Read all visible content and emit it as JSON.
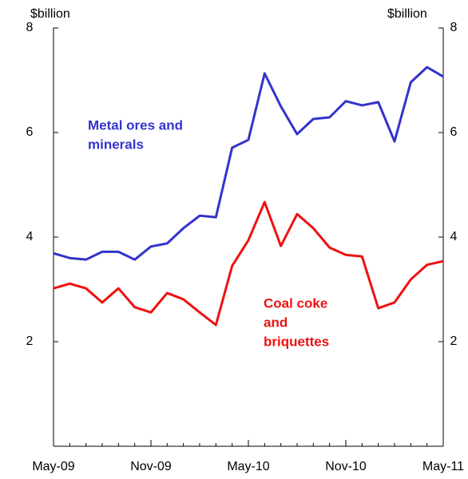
{
  "chart_data": {
    "type": "line",
    "y_unit": "$billion",
    "y2_unit": "$billion",
    "categories": [
      "May-09",
      null,
      null,
      null,
      null,
      null,
      "Nov-09",
      null,
      null,
      null,
      null,
      null,
      "May-10",
      null,
      null,
      null,
      null,
      null,
      "Nov-10",
      null,
      null,
      null,
      null,
      null,
      "May-11"
    ],
    "series": [
      {
        "name": "Metal ores and minerals",
        "color": "#3333cc",
        "label_lines": [
          "Metal ores and",
          "minerals"
        ],
        "values": [
          3.69,
          3.6,
          3.57,
          3.72,
          3.72,
          3.57,
          3.82,
          3.88,
          4.17,
          4.41,
          4.38,
          5.71,
          5.86,
          7.13,
          6.5,
          5.97,
          6.26,
          6.29,
          6.6,
          6.52,
          6.58,
          5.83,
          6.96,
          7.25,
          7.07
        ]
      },
      {
        "name": "Coal coke and briquettes",
        "color": "#ee1111",
        "label_lines": [
          "Coal coke",
          "and",
          "briquettes"
        ],
        "values": [
          3.02,
          3.11,
          3.02,
          2.75,
          3.02,
          2.66,
          2.56,
          2.93,
          2.81,
          2.56,
          2.32,
          3.45,
          3.94,
          4.67,
          3.83,
          4.44,
          4.17,
          3.8,
          3.66,
          3.63,
          2.64,
          2.75,
          3.19,
          3.47,
          3.54
        ]
      }
    ],
    "ylim": [
      0,
      8
    ],
    "yticks": [
      2,
      4,
      6,
      8
    ],
    "y2lim": [
      0,
      8
    ],
    "y2ticks": [
      2,
      4,
      6,
      8
    ]
  }
}
